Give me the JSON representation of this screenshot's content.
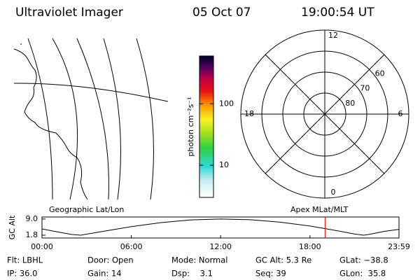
{
  "header": {
    "title": "Ultraviolet Imager",
    "date": "05 Oct 07",
    "time": "19:00:54 UT"
  },
  "colorbar": {
    "label": "photon cm⁻²s⁻¹",
    "zlim": [
      3,
      600
    ],
    "ticks": [
      10,
      100
    ],
    "log": true
  },
  "polar": {
    "rlim": [
      90,
      50
    ],
    "rticks": [
      60,
      70,
      80
    ],
    "theta_ticks": [
      12,
      18,
      6,
      0
    ]
  },
  "chart_data": {
    "type": "line",
    "title": "Geographic Lat/Lon",
    "subtitle": "Apex MLat/MLT",
    "y_label": "GC Alt",
    "x": [
      0,
      1,
      2,
      2.6,
      4,
      6,
      8,
      10,
      12,
      14,
      16,
      18,
      20,
      21,
      21.6,
      22,
      23,
      23.98
    ],
    "series": [
      {
        "name": "GC Alt",
        "color": "#000000",
        "values": [
          4.6,
          3.3,
          2.1,
          1.8,
          3.4,
          5.6,
          7.4,
          8.6,
          9.0,
          8.7,
          7.6,
          5.9,
          3.6,
          2.3,
          1.8,
          2.2,
          3.5,
          4.4
        ]
      }
    ],
    "current_time": 19.015,
    "current_color": "#ff0000",
    "xlim": [
      0,
      23.98
    ],
    "ylim": [
      0.55,
      9.9
    ],
    "xticks": [
      {
        "value": 0,
        "label": "00:00"
      },
      {
        "value": 6,
        "label": "06:00"
      },
      {
        "value": 12,
        "label": "12:00"
      },
      {
        "value": 18,
        "label": "18:00"
      },
      {
        "value": 23.98,
        "label": "23:59"
      }
    ],
    "yticks": [
      1.8,
      {
        "value": 9,
        "label": "9.0"
      }
    ]
  },
  "footer": {
    "rows": [
      [
        "Flt: LBHL",
        "Door: Open",
        "Mode: Normal",
        "GC Alt: 5.3 Re",
        "GLat: −38.8"
      ],
      [
        "IP: 36.0",
        "Gain: 14",
        "Dsp:    3.1",
        "Seq: 39",
        "GLon:  35.8"
      ]
    ]
  }
}
